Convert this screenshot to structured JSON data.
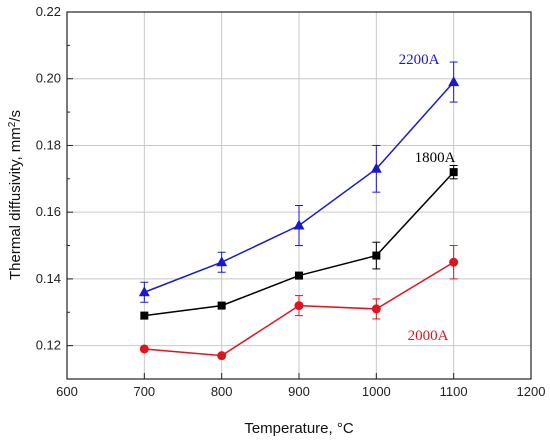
{
  "chart_data": {
    "type": "scatter",
    "xlabel": "Temperature, °C",
    "ylabel_main": "Thermal diffusivity, mm",
    "ylabel_sup": "2",
    "ylabel_tail": "/s",
    "xlim": [
      600,
      1200
    ],
    "ylim": [
      0.11,
      0.22
    ],
    "x_ticks": [
      "600",
      "700",
      "800",
      "900",
      "1000",
      "1100",
      "1200"
    ],
    "y_ticks": [
      "0.12",
      "0.14",
      "0.16",
      "0.18",
      "0.20",
      "0.22"
    ],
    "grid": true,
    "series": [
      {
        "name": "2200A",
        "color": "#1a1acc",
        "marker": "triangle",
        "x": [
          700,
          800,
          900,
          1000,
          1100
        ],
        "y": [
          0.136,
          0.145,
          0.156,
          0.173,
          0.199
        ],
        "error": [
          0.003,
          0.003,
          0.006,
          0.007,
          0.006
        ]
      },
      {
        "name": "1800A",
        "color": "#000000",
        "marker": "square",
        "x": [
          700,
          800,
          900,
          1000,
          1100
        ],
        "y": [
          0.129,
          0.132,
          0.141,
          0.147,
          0.172
        ],
        "error": [
          0.0,
          0.0,
          0.0,
          0.004,
          0.002
        ]
      },
      {
        "name": "2000A",
        "color": "#e0141e",
        "marker": "circle",
        "x": [
          700,
          800,
          900,
          1000,
          1100
        ],
        "y": [
          0.119,
          0.117,
          0.132,
          0.131,
          0.145
        ],
        "error": [
          0.0,
          0.0,
          0.003,
          0.003,
          0.005
        ]
      }
    ]
  }
}
